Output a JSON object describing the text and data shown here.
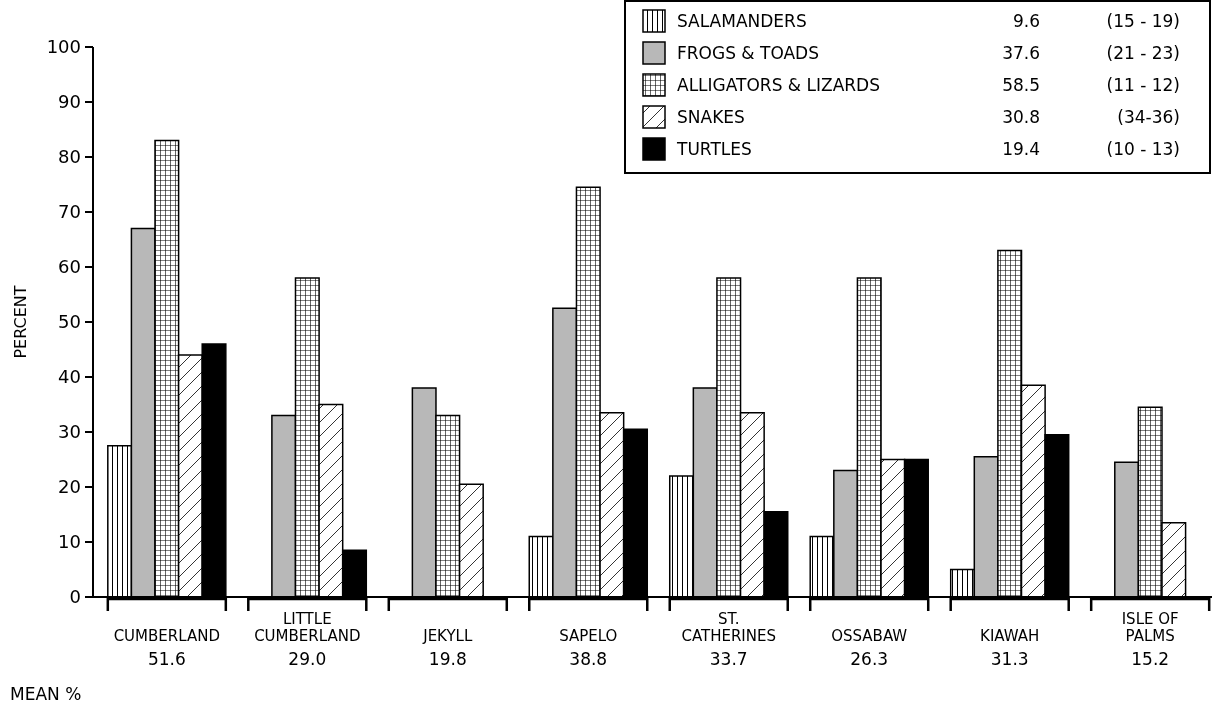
{
  "chart_data": {
    "type": "bar",
    "ylabel": "PERCENT",
    "categories": [
      "CUMBERLAND",
      "LITTLE CUMBERLAND",
      "JEKYLL",
      "SAPELO",
      "ST. CATHERINES",
      "OSSABAW",
      "KIAWAH",
      "ISLE OF PALMS"
    ],
    "series": [
      {
        "name": "SALAMANDERS",
        "color": "#000000",
        "values": [
          27.5,
          0,
          0,
          11,
          22,
          11,
          5,
          0
        ]
      },
      {
        "name": "FROGS & TOADS",
        "color": "#b8b8b8",
        "values": [
          67,
          33,
          38,
          52.5,
          38,
          23,
          25.5,
          24.5
        ]
      },
      {
        "name": "ALLIGATORS & LIZARDS",
        "color": "#000000",
        "values": [
          83,
          58,
          33,
          74.5,
          58,
          58,
          63,
          34.5
        ]
      },
      {
        "name": "SNAKES",
        "color": "#000000",
        "values": [
          44,
          35,
          20.5,
          33.5,
          33.5,
          25,
          38.5,
          13.5
        ]
      },
      {
        "name": "TURTLES",
        "color": "#000000",
        "values": [
          46,
          8.5,
          0,
          30.5,
          15.5,
          25,
          29.5,
          0
        ]
      }
    ],
    "ylim": [
      0,
      100
    ],
    "yticks": [
      0,
      10,
      20,
      30,
      40,
      50,
      60,
      70,
      80,
      90,
      100
    ],
    "legend": "top right",
    "annotations": [
      "51.6",
      "29.0",
      "19.8",
      "38.8",
      "33.7",
      "26.3",
      "31.3",
      "15.2",
      "MEAN %",
      "9.6",
      "(15 - 19)",
      "37.6",
      "(21 - 23)",
      "58.5",
      "(11 - 12)",
      "30.8",
      "(34-36)",
      "19.4",
      "(10 - 13)"
    ]
  }
}
